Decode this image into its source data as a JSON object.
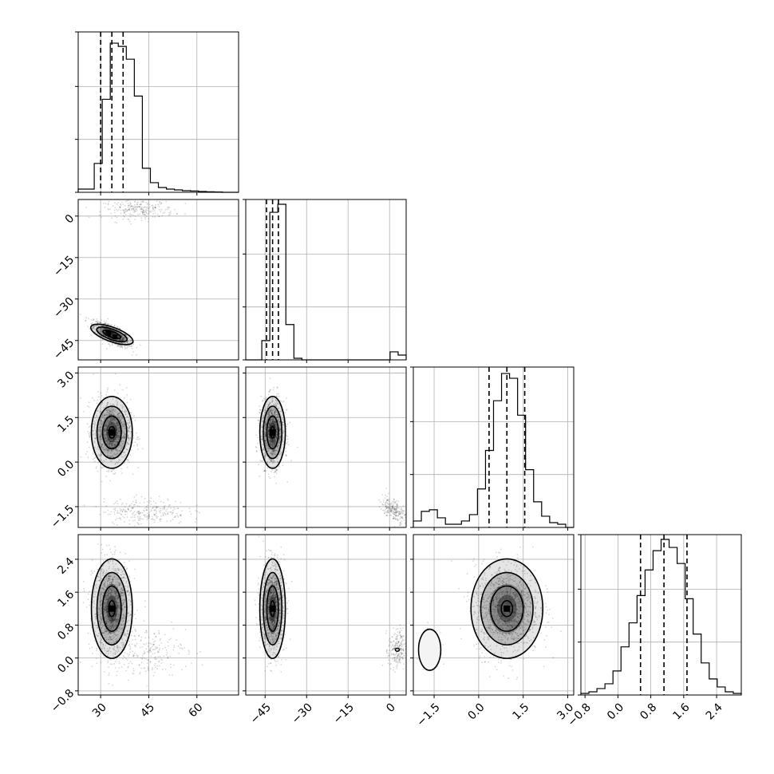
{
  "chart_data": {
    "type": "corner",
    "grid": true,
    "parameters": [
      {
        "ticks": [
          30,
          45,
          60
        ],
        "tick_labels": [
          "30",
          "45",
          "60"
        ],
        "range": [
          23,
          73
        ]
      },
      {
        "ticks": [
          -45,
          -30,
          -15,
          0
        ],
        "tick_labels": [
          "−45",
          "−30",
          "−15",
          "0"
        ],
        "range": [
          -52,
          6
        ]
      },
      {
        "ticks": [
          -1.5,
          0.0,
          1.5,
          3.0
        ],
        "tick_labels": [
          "−1.5",
          "0.0",
          "1.5",
          "3.0"
        ],
        "range": [
          -2.2,
          3.2
        ]
      },
      {
        "ticks": [
          -0.8,
          0.0,
          0.8,
          1.6,
          2.4
        ],
        "tick_labels": [
          "−0.8",
          "0.0",
          "0.8",
          "1.6",
          "2.4"
        ],
        "range": [
          -0.9,
          3.0
        ]
      }
    ],
    "quantiles": [
      [
        30.0,
        33.5,
        37.0
      ],
      [
        -44.5,
        -42.3,
        -40.2
      ],
      [
        0.35,
        0.95,
        1.55
      ],
      [
        0.55,
        1.12,
        1.68
      ]
    ],
    "histograms": [
      {
        "counts": [
          0.02,
          0.02,
          0.18,
          0.58,
          0.93,
          0.91,
          0.83,
          0.6,
          0.15,
          0.06,
          0.03,
          0.02,
          0.015,
          0.01,
          0.008,
          0.005,
          0.003,
          0.002,
          0.0,
          0.0
        ]
      },
      {
        "counts": [
          0.0,
          0.0,
          0.12,
          0.92,
          0.97,
          0.22,
          0.01,
          0.0,
          0.0,
          0.0,
          0.0,
          0.0,
          0.0,
          0.0,
          0.0,
          0.0,
          0.0,
          0.0,
          0.05,
          0.03
        ]
      },
      {
        "counts": [
          0.04,
          0.1,
          0.11,
          0.06,
          0.02,
          0.02,
          0.04,
          0.08,
          0.24,
          0.48,
          0.79,
          0.96,
          0.93,
          0.7,
          0.36,
          0.16,
          0.07,
          0.03,
          0.02,
          0.0
        ]
      },
      {
        "counts": [
          0.01,
          0.02,
          0.04,
          0.07,
          0.15,
          0.3,
          0.45,
          0.62,
          0.78,
          0.9,
          0.97,
          0.92,
          0.82,
          0.6,
          0.38,
          0.2,
          0.1,
          0.05,
          0.02,
          0.01
        ]
      }
    ],
    "modes": [
      {
        "center": [
          33.5,
          -42.8
        ],
        "sigma": [
          2.8,
          2.2
        ],
        "rho": -0.72,
        "weight": 0.93,
        "n_points": 900
      },
      {
        "center": [
          42.0,
          2.5
        ],
        "sigma": [
          5.5,
          1.7
        ],
        "rho": 0.0,
        "weight": 0.07,
        "n_points": 240
      }
    ],
    "panels": {
      "2_0": {
        "components": [
          {
            "cx": 33.5,
            "cy": 1.0,
            "sx": 2.9,
            "sy": 0.55,
            "rho": 0.0,
            "n": 1200,
            "contours": true
          },
          {
            "cx": 44.0,
            "cy": -1.65,
            "sx": 6.5,
            "sy": 0.22,
            "rho": 0.0,
            "n": 260,
            "contours": false
          }
        ]
      },
      "2_1": {
        "components": [
          {
            "cx": -42.3,
            "cy": 1.0,
            "sx": 2.1,
            "sy": 0.55,
            "rho": 0.0,
            "n": 1200,
            "contours": true
          },
          {
            "cx": 1.5,
            "cy": -1.6,
            "sx": 2.2,
            "sy": 0.22,
            "rho": -0.5,
            "n": 220,
            "contours": false
          }
        ]
      },
      "3_0": {
        "components": [
          {
            "cx": 33.5,
            "cy": 1.2,
            "sx": 2.9,
            "sy": 0.55,
            "rho": 0.0,
            "n": 1200,
            "contours": true
          },
          {
            "cx": 44.0,
            "cy": 0.18,
            "sx": 6.5,
            "sy": 0.3,
            "rho": 0.0,
            "n": 240,
            "contours": false
          }
        ]
      },
      "3_1": {
        "components": [
          {
            "cx": -42.3,
            "cy": 1.2,
            "sx": 2.1,
            "sy": 0.55,
            "rho": 0.0,
            "n": 1200,
            "contours": true
          },
          {
            "cx": 2.8,
            "cy": 0.2,
            "sx": 1.6,
            "sy": 0.25,
            "rho": 0.0,
            "n": 220,
            "contours": "inner"
          }
        ]
      },
      "3_2": {
        "components": [
          {
            "cx": 0.95,
            "cy": 1.2,
            "sx": 0.55,
            "sy": 0.55,
            "rho": 0.0,
            "n": 1200,
            "contours": true
          },
          {
            "cx": -1.65,
            "cy": 0.2,
            "sx": 0.15,
            "sy": 0.2,
            "rho": 0.0,
            "n": 220,
            "contours": "blob"
          }
        ]
      }
    }
  }
}
